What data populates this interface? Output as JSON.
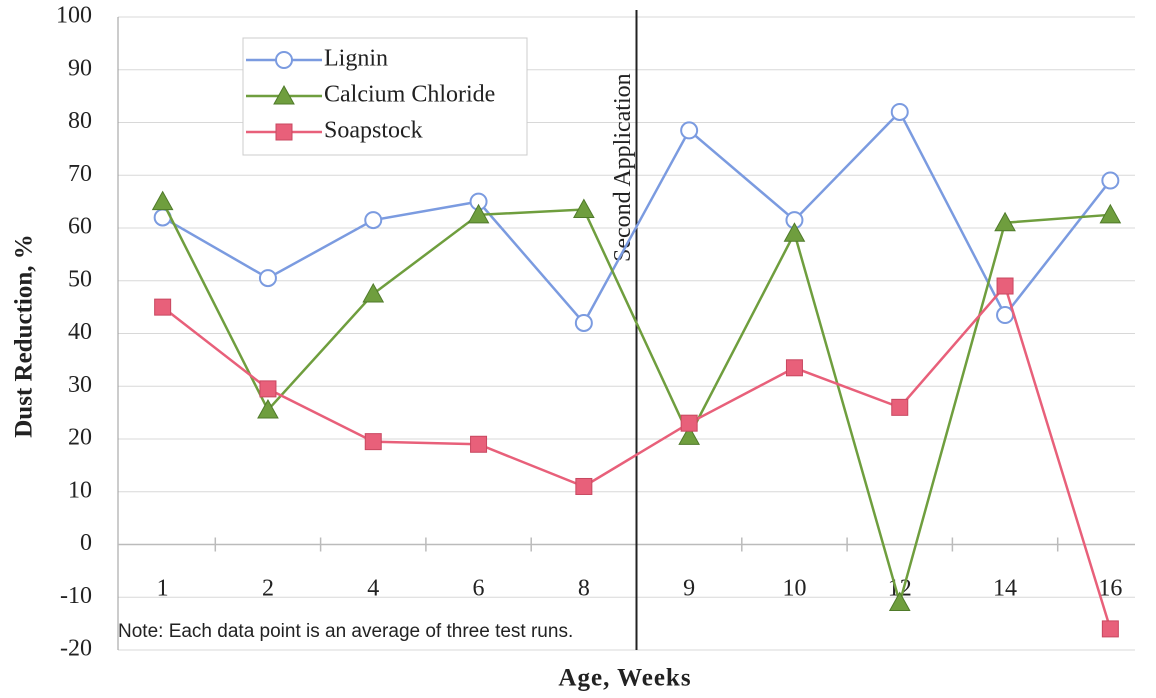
{
  "chart_data": {
    "type": "line",
    "x_label": "Age, Weeks",
    "y_label": "Dust Reduction, %",
    "annotations": [
      "Second Application",
      "Note: Each data point is an average of three test runs."
    ],
    "categories": [
      "1",
      "2",
      "4",
      "6",
      "8",
      "9",
      "10",
      "12",
      "14",
      "16"
    ],
    "series": [
      {
        "name": "Lignin",
        "color": "#7b9be0",
        "marker": "circle",
        "values": [
          62,
          50.5,
          61.5,
          65,
          42,
          78.5,
          61.5,
          82,
          43.5,
          69
        ]
      },
      {
        "name": "Calcium Chloride",
        "color": "#6f9e3e",
        "marker": "triangle",
        "values": [
          65,
          25.5,
          47.5,
          62.5,
          63.5,
          20.5,
          59,
          -11,
          61,
          62.5
        ]
      },
      {
        "name": "Soapstock",
        "color": "#e8607a",
        "marker": "square",
        "values": [
          45,
          29.5,
          19.5,
          19,
          11,
          23,
          33.5,
          26,
          49,
          -16
        ]
      }
    ],
    "ylim": [
      -20,
      100
    ],
    "yticks": [
      -20,
      -10,
      0,
      10,
      20,
      30,
      40,
      50,
      60,
      70,
      80,
      90,
      100
    ],
    "grid": true
  }
}
